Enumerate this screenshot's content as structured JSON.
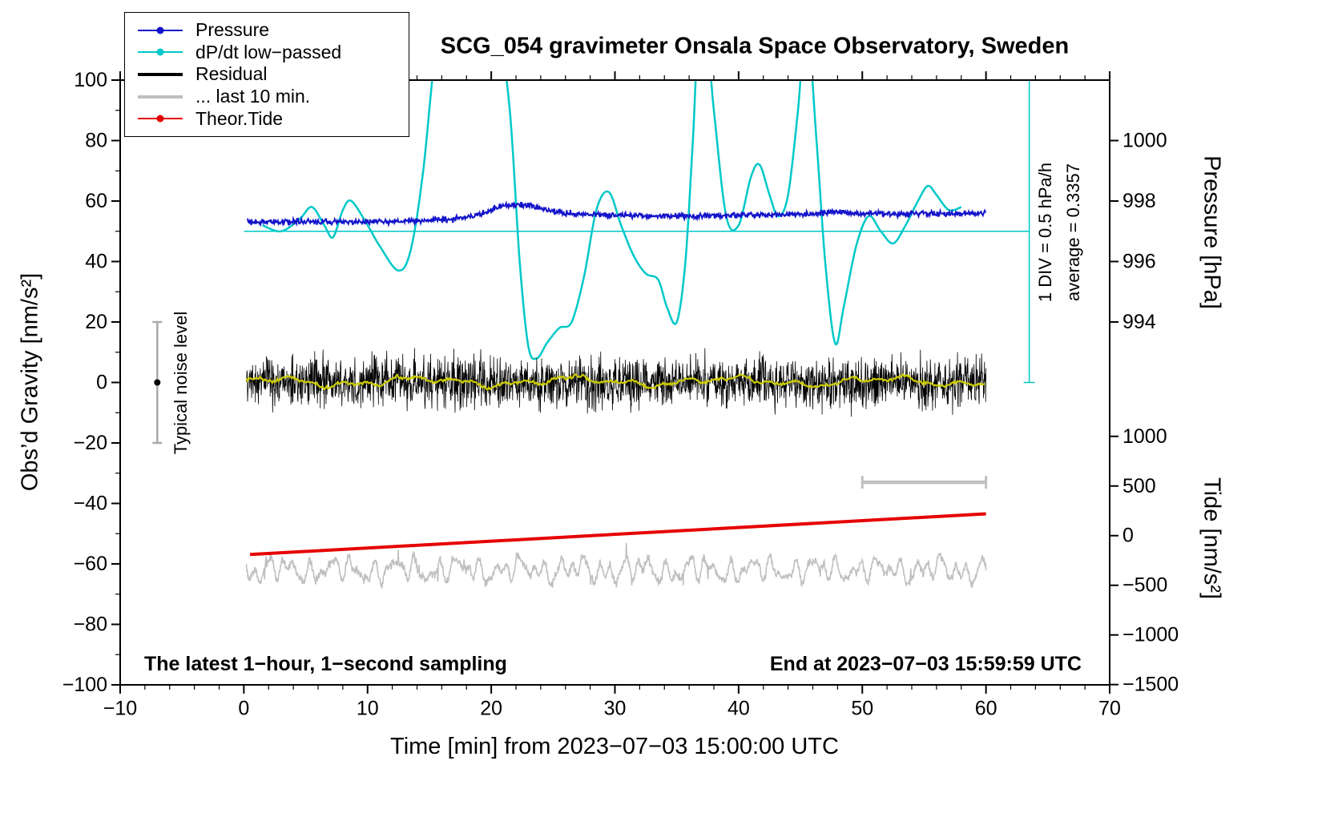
{
  "page": {
    "title": "SCG_054 gravimeter Onsala Space Observatory, Sweden",
    "footer_left": "The latest 1−hour, 1−second sampling",
    "footer_right": "End at 2023−07−03 15:59:59 UTC"
  },
  "labels": {
    "x_title": "Time [min] from 2023−07−03 15:00:00 UTC",
    "y_left_title": "Obs’d Gravity [nm/s²]",
    "y_pressure_title": "Pressure [hPa]",
    "y_tide_title": "Tide [nm/s²]",
    "noise_label": "Typical noise level",
    "div_label": "1 DIV = 0.5 hPa/h",
    "avg_label": "average = 0.3357"
  },
  "legend": [
    {
      "label": "Pressure",
      "color": "#1414cc",
      "marker": "line-dot"
    },
    {
      "label": "dP/dt low−passed",
      "color": "#00c8c8",
      "marker": "line-dot"
    },
    {
      "label": "Residual",
      "color": "#000000",
      "marker": "line"
    },
    {
      "label": "... last 10 min.",
      "color": "#bfbfbf",
      "marker": "line"
    },
    {
      "label": "Theor.Tide",
      "color": "#e60000",
      "marker": "line-dot"
    }
  ],
  "chart_data": {
    "type": "line",
    "title": "SCG_054 gravimeter Onsala Space Observatory, Sweden",
    "x_axis": {
      "label": "Time [min] from 2023-07-03 15:00:00 UTC",
      "min": -10,
      "max": 70,
      "major_ticks": [
        -10,
        0,
        10,
        20,
        30,
        40,
        50,
        60,
        70
      ],
      "minor_step": 2
    },
    "y_left": {
      "label": "Obs'd Gravity [nm/s2]",
      "min": -100,
      "max": 100,
      "major_ticks": [
        -100,
        -80,
        -60,
        -40,
        -20,
        0,
        20,
        40,
        60,
        80,
        100
      ],
      "minor_step": 10
    },
    "y_pressure": {
      "label": "Pressure [hPa]",
      "ticks": [
        1000,
        998,
        996,
        994
      ],
      "hPa_at_gravity50": 997,
      "gravity_per_hPa": 10
    },
    "y_tide": {
      "label": "Tide [nm/s2]",
      "ticks": [
        1000,
        500,
        0,
        -500,
        -1000,
        -1500
      ],
      "gravity_offset": -50.66,
      "gravity_per_unit": 0.032837
    },
    "series": [
      {
        "id": "pressure",
        "name": "Pressure",
        "units": "hPa",
        "color": "#1414cc",
        "noise_hPa": 0.045,
        "anchors_hPa": [
          [
            0,
            997.32
          ],
          [
            3,
            997.31
          ],
          [
            6,
            997.33
          ],
          [
            10,
            997.32
          ],
          [
            14,
            997.34
          ],
          [
            17,
            997.4
          ],
          [
            19,
            997.55
          ],
          [
            21,
            997.83
          ],
          [
            22,
            997.88
          ],
          [
            23,
            997.86
          ],
          [
            24,
            997.76
          ],
          [
            25,
            997.66
          ],
          [
            26,
            997.6
          ],
          [
            28,
            997.56
          ],
          [
            30,
            997.54
          ],
          [
            33,
            997.51
          ],
          [
            36,
            997.5
          ],
          [
            39,
            997.52
          ],
          [
            42,
            997.54
          ],
          [
            45,
            997.56
          ],
          [
            47,
            997.62
          ],
          [
            48,
            997.66
          ],
          [
            49,
            997.59
          ],
          [
            52,
            997.58
          ],
          [
            55,
            997.59
          ],
          [
            58,
            997.58
          ],
          [
            60,
            997.6
          ]
        ]
      },
      {
        "id": "dpdt",
        "name": "dP/dt low-passed",
        "color": "#00c8c8",
        "average_hPa_per_h": 0.3357,
        "anchors_gravity": [
          [
            1.5,
            52
          ],
          [
            3,
            50
          ],
          [
            4.5,
            54
          ],
          [
            5.5,
            58
          ],
          [
            6.5,
            52
          ],
          [
            7.2,
            48
          ],
          [
            8,
            57
          ],
          [
            8.7,
            60
          ],
          [
            10,
            52
          ],
          [
            11,
            45
          ],
          [
            12.5,
            37
          ],
          [
            13.5,
            44
          ],
          [
            14.5,
            70
          ],
          [
            15.5,
            110
          ],
          [
            17,
            150
          ],
          [
            19,
            150
          ],
          [
            20.5,
            120
          ],
          [
            21.5,
            90
          ],
          [
            22.3,
            40
          ],
          [
            23,
            12
          ],
          [
            23.7,
            8
          ],
          [
            24.5,
            13
          ],
          [
            25.5,
            18
          ],
          [
            26.5,
            20
          ],
          [
            27.5,
            35
          ],
          [
            28.5,
            57
          ],
          [
            29.5,
            63
          ],
          [
            30.5,
            52
          ],
          [
            31.5,
            42
          ],
          [
            32.5,
            36
          ],
          [
            33.5,
            34
          ],
          [
            34.2,
            25
          ],
          [
            35,
            20
          ],
          [
            35.7,
            40
          ],
          [
            36.3,
            80
          ],
          [
            37,
            130
          ],
          [
            38,
            90
          ],
          [
            39,
            55
          ],
          [
            40,
            52
          ],
          [
            41,
            68
          ],
          [
            41.7,
            72
          ],
          [
            42.5,
            62
          ],
          [
            43.2,
            55
          ],
          [
            44,
            62
          ],
          [
            44.8,
            90
          ],
          [
            45.5,
            120
          ],
          [
            46.3,
            80
          ],
          [
            47,
            40
          ],
          [
            47.8,
            13
          ],
          [
            48.5,
            25
          ],
          [
            49.5,
            45
          ],
          [
            50.5,
            55
          ],
          [
            51.5,
            50
          ],
          [
            52.5,
            46
          ],
          [
            53.5,
            52
          ],
          [
            54.5,
            60
          ],
          [
            55.3,
            65
          ],
          [
            56,
            62
          ],
          [
            57,
            57
          ],
          [
            58,
            58
          ]
        ]
      },
      {
        "id": "residual",
        "name": "Residual",
        "color": "#000000",
        "baseline": 0,
        "std": 4,
        "x_range": [
          0.2,
          60
        ]
      },
      {
        "id": "residual_smooth",
        "name": "Residual smoothed",
        "color": "#cccc00",
        "baseline": 0.3,
        "amplitude": 2,
        "x_range": [
          0.2,
          60
        ]
      },
      {
        "id": "last10",
        "name": "... last 10 min.",
        "color": "#c0c0c0",
        "baseline": -62,
        "amplitude": 6,
        "x_range": [
          0.2,
          60
        ]
      },
      {
        "id": "tide",
        "name": "Theor.Tide",
        "units": "tide nm/s2",
        "color": "#e60000",
        "anchors_tide": [
          [
            0.5,
            -190
          ],
          [
            60,
            220
          ]
        ]
      }
    ],
    "annotations": {
      "pressure_ref_line": {
        "gravity": 50,
        "x_from": 0,
        "x_to": 63.5,
        "color": "#00c8c8"
      },
      "div_scale_bar": {
        "x": 63.5,
        "gravity_from": 0,
        "gravity_to": 100,
        "color": "#00c8c8"
      },
      "noise_bar": {
        "x": -7,
        "gravity_center": 0,
        "gravity_half": 20,
        "color": "#a9a9a9"
      },
      "ten_min_bar": {
        "gravity": -33,
        "x_from": 50,
        "x_to": 60,
        "color": "#c0c0c0"
      }
    }
  }
}
